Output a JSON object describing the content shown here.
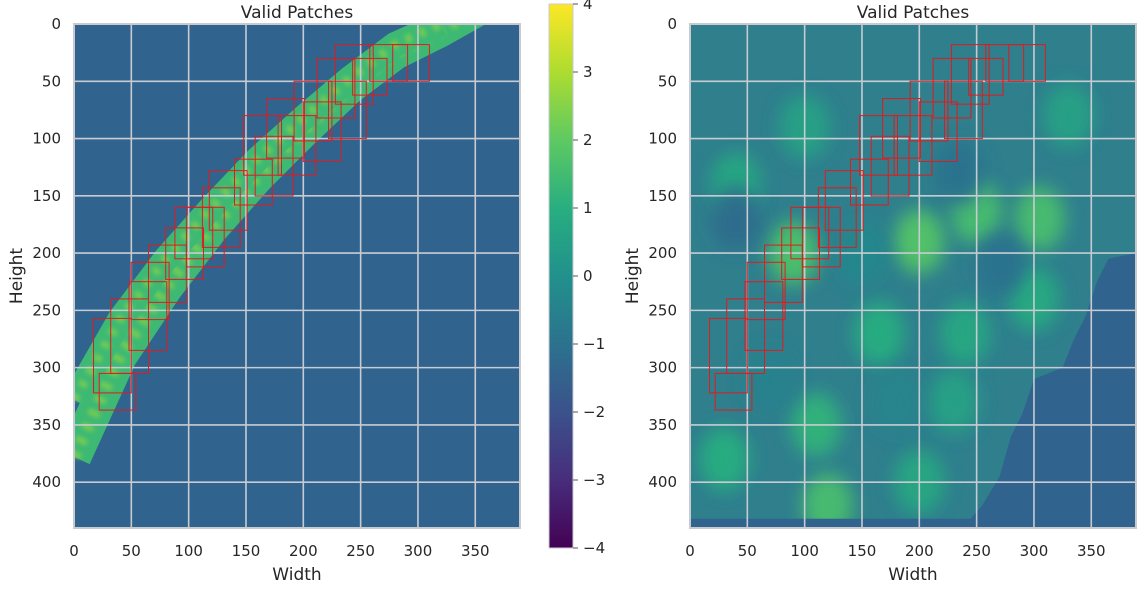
{
  "chart_data": [
    {
      "type": "heatmap",
      "panel": "left",
      "title": "Valid Patches",
      "xlabel": "Width",
      "ylabel": "Height",
      "xlim": [
        0,
        389
      ],
      "ylim": [
        440,
        0
      ],
      "xticks": [
        0,
        50,
        100,
        150,
        200,
        250,
        300,
        350
      ],
      "yticks": [
        0,
        50,
        100,
        150,
        200,
        250,
        300,
        350,
        400
      ],
      "grid": true,
      "background_value": -1,
      "bands": [
        {
          "name": "outer-band",
          "center": [
            [
              0,
              378
            ],
            [
              40,
              290
            ],
            [
              80,
              230
            ],
            [
              120,
              178
            ],
            [
              160,
              133
            ],
            [
              200,
              93
            ],
            [
              240,
              55
            ],
            [
              280,
              25
            ],
            [
              320,
              5
            ],
            [
              350,
              -12
            ]
          ],
          "width": 30
        },
        {
          "name": "inner-band",
          "center": [
            [
              0,
              328
            ],
            [
              40,
              258
            ],
            [
              80,
              205
            ],
            [
              120,
              160
            ],
            [
              160,
              118
            ],
            [
              200,
              82
            ],
            [
              240,
              48
            ],
            [
              280,
              18
            ],
            [
              320,
              0
            ]
          ],
          "width": 22
        }
      ],
      "patches": [
        {
          "x": 17,
          "y": 257,
          "w": 33,
          "h": 65
        },
        {
          "x": 22,
          "y": 305,
          "w": 32,
          "h": 32
        },
        {
          "x": 32,
          "y": 240,
          "w": 33,
          "h": 65
        },
        {
          "x": 48,
          "y": 225,
          "w": 33,
          "h": 60
        },
        {
          "x": 50,
          "y": 208,
          "w": 33,
          "h": 50
        },
        {
          "x": 65,
          "y": 193,
          "w": 33,
          "h": 50
        },
        {
          "x": 80,
          "y": 178,
          "w": 33,
          "h": 45
        },
        {
          "x": 88,
          "y": 160,
          "w": 33,
          "h": 45
        },
        {
          "x": 98,
          "y": 160,
          "w": 33,
          "h": 52
        },
        {
          "x": 112,
          "y": 143,
          "w": 33,
          "h": 52
        },
        {
          "x": 118,
          "y": 128,
          "w": 33,
          "h": 52
        },
        {
          "x": 140,
          "y": 118,
          "w": 33,
          "h": 40
        },
        {
          "x": 148,
          "y": 80,
          "w": 33,
          "h": 52
        },
        {
          "x": 158,
          "y": 98,
          "w": 33,
          "h": 52
        },
        {
          "x": 168,
          "y": 65,
          "w": 33,
          "h": 52
        },
        {
          "x": 178,
          "y": 80,
          "w": 33,
          "h": 52
        },
        {
          "x": 192,
          "y": 50,
          "w": 33,
          "h": 52
        },
        {
          "x": 200,
          "y": 68,
          "w": 33,
          "h": 52
        },
        {
          "x": 212,
          "y": 30,
          "w": 33,
          "h": 52
        },
        {
          "x": 222,
          "y": 50,
          "w": 33,
          "h": 50
        },
        {
          "x": 228,
          "y": 18,
          "w": 33,
          "h": 52
        },
        {
          "x": 243,
          "y": 30,
          "w": 30,
          "h": 32
        },
        {
          "x": 258,
          "y": 18,
          "w": 33,
          "h": 32
        },
        {
          "x": 278,
          "y": 18,
          "w": 32,
          "h": 32
        }
      ]
    },
    {
      "type": "heatmap",
      "panel": "right",
      "title": "Valid Patches",
      "xlabel": "Width",
      "ylabel": "Height",
      "xlim": [
        0,
        389
      ],
      "ylim": [
        440,
        0
      ],
      "xticks": [
        0,
        50,
        100,
        150,
        200,
        250,
        300,
        350
      ],
      "yticks": [
        0,
        50,
        100,
        150,
        200,
        250,
        300,
        350,
        400
      ],
      "grid": true,
      "background_value": -1,
      "patches": [
        {
          "x": 17,
          "y": 257,
          "w": 33,
          "h": 65
        },
        {
          "x": 22,
          "y": 305,
          "w": 32,
          "h": 32
        },
        {
          "x": 32,
          "y": 240,
          "w": 33,
          "h": 65
        },
        {
          "x": 48,
          "y": 225,
          "w": 33,
          "h": 60
        },
        {
          "x": 50,
          "y": 208,
          "w": 33,
          "h": 50
        },
        {
          "x": 65,
          "y": 193,
          "w": 33,
          "h": 50
        },
        {
          "x": 80,
          "y": 178,
          "w": 33,
          "h": 45
        },
        {
          "x": 88,
          "y": 160,
          "w": 33,
          "h": 45
        },
        {
          "x": 98,
          "y": 160,
          "w": 33,
          "h": 52
        },
        {
          "x": 112,
          "y": 143,
          "w": 33,
          "h": 52
        },
        {
          "x": 118,
          "y": 128,
          "w": 33,
          "h": 52
        },
        {
          "x": 140,
          "y": 118,
          "w": 33,
          "h": 40
        },
        {
          "x": 148,
          "y": 80,
          "w": 33,
          "h": 52
        },
        {
          "x": 158,
          "y": 98,
          "w": 33,
          "h": 52
        },
        {
          "x": 168,
          "y": 65,
          "w": 33,
          "h": 52
        },
        {
          "x": 178,
          "y": 80,
          "w": 33,
          "h": 52
        },
        {
          "x": 192,
          "y": 50,
          "w": 33,
          "h": 52
        },
        {
          "x": 200,
          "y": 68,
          "w": 33,
          "h": 52
        },
        {
          "x": 212,
          "y": 30,
          "w": 33,
          "h": 52
        },
        {
          "x": 222,
          "y": 50,
          "w": 33,
          "h": 50
        },
        {
          "x": 228,
          "y": 18,
          "w": 33,
          "h": 52
        },
        {
          "x": 243,
          "y": 30,
          "w": 30,
          "h": 32
        },
        {
          "x": 258,
          "y": 18,
          "w": 33,
          "h": 32
        },
        {
          "x": 278,
          "y": 18,
          "w": 32,
          "h": 32
        }
      ],
      "blobs": [
        {
          "x": 200,
          "y": 190,
          "v": 1.8
        },
        {
          "x": 250,
          "y": 165,
          "v": 1.6
        },
        {
          "x": 305,
          "y": 170,
          "v": 1.6
        },
        {
          "x": 90,
          "y": 200,
          "v": 1.7
        },
        {
          "x": 120,
          "y": 420,
          "v": 1.6
        },
        {
          "x": 110,
          "y": 350,
          "v": 1.2
        },
        {
          "x": 165,
          "y": 270,
          "v": 1.0
        },
        {
          "x": 30,
          "y": 380,
          "v": 1.0
        },
        {
          "x": 40,
          "y": 140,
          "v": 0.8
        },
        {
          "x": 240,
          "y": 270,
          "v": 0.8
        },
        {
          "x": 330,
          "y": 80,
          "v": 0.6
        },
        {
          "x": 300,
          "y": 240,
          "v": 0.9
        },
        {
          "x": 100,
          "y": 90,
          "v": 0.6
        },
        {
          "x": 200,
          "y": 400,
          "v": 0.8
        },
        {
          "x": 230,
          "y": 330,
          "v": 0.6
        },
        {
          "x": 40,
          "y": 170,
          "v": -1.2
        },
        {
          "x": 235,
          "y": 130,
          "v": -1.0
        },
        {
          "x": 270,
          "y": 210,
          "v": -1.0
        },
        {
          "x": 150,
          "y": 200,
          "v": -0.3
        },
        {
          "x": 70,
          "y": 310,
          "v": -0.5
        },
        {
          "x": 180,
          "y": 330,
          "v": -0.4
        }
      ],
      "invalid_region": [
        [
          389,
          200
        ],
        [
          365,
          205
        ],
        [
          355,
          225
        ],
        [
          345,
          255
        ],
        [
          335,
          275
        ],
        [
          325,
          300
        ],
        [
          300,
          310
        ],
        [
          290,
          340
        ],
        [
          280,
          360
        ],
        [
          270,
          395
        ],
        [
          255,
          420
        ],
        [
          245,
          432
        ],
        [
          100,
          432
        ],
        [
          0,
          432
        ],
        [
          0,
          440
        ],
        [
          389,
          440
        ]
      ]
    }
  ],
  "colorbar": {
    "cmap": "viridis",
    "vmin": -4,
    "vmax": 4,
    "ticks": [
      "4",
      "3",
      "2",
      "1",
      "0",
      "−1",
      "−2",
      "−3",
      "−4"
    ],
    "tick_values": [
      4,
      3,
      2,
      1,
      0,
      -1,
      -2,
      -3,
      -4
    ]
  },
  "colors": {
    "patch_edge": "#e31a1c",
    "grid": "#c8ccd2",
    "spine": "#c7cbd1"
  }
}
